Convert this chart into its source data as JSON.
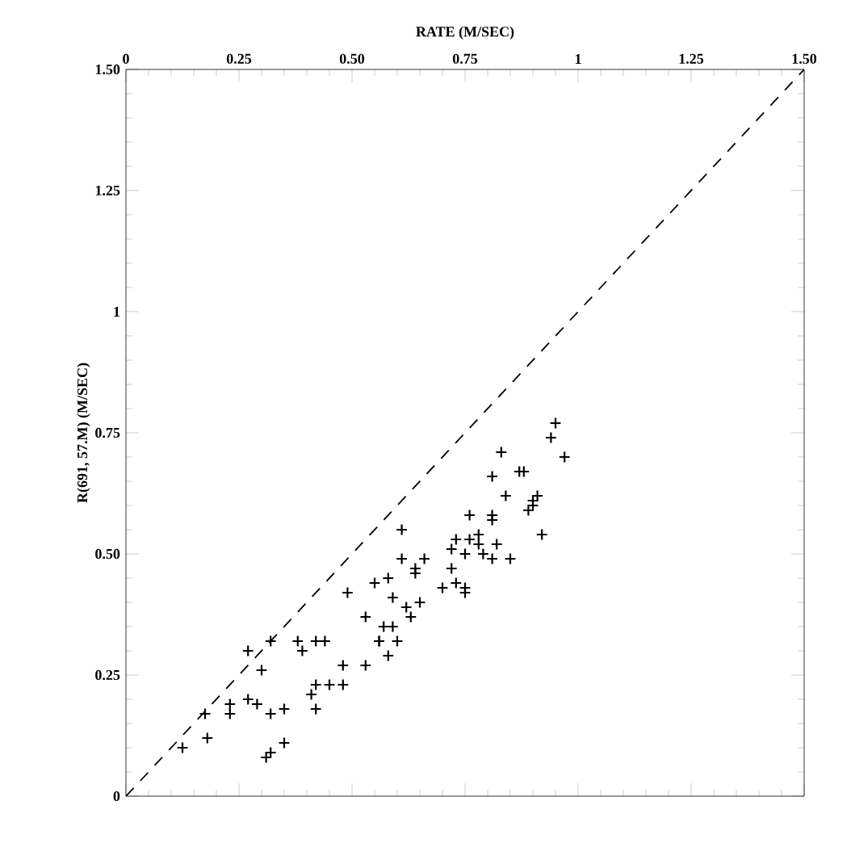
{
  "chart_data": {
    "type": "scatter",
    "xlabel": "RATE (M/SEC)",
    "ylabel": "R(691, 57.M) (M/SEC)",
    "marker": "cross",
    "xlim": [
      0,
      1.5
    ],
    "xticks": [
      0,
      0.25,
      {
        "value": 0.5,
        "label": "0.50"
      },
      0.75,
      1,
      1.25,
      {
        "value": 1.5,
        "label": "1.50"
      }
    ],
    "ylim": [
      0,
      1.5
    ],
    "yticks": [
      0,
      0.25,
      {
        "value": 0.5,
        "label": "0.50"
      },
      0.75,
      1,
      1.25,
      {
        "value": 1.5,
        "label": "1.50"
      }
    ],
    "series": [
      {
        "color": "#000000",
        "x": [
          0.125,
          0.175,
          0.18,
          0.23,
          0.23,
          0.27,
          0.27,
          0.29,
          0.3,
          0.32,
          0.32,
          0.31,
          0.32,
          0.35,
          0.35,
          0.38,
          0.39,
          0.42,
          0.42,
          0.41,
          0.42,
          0.45,
          0.48,
          0.48,
          0.53,
          0.53,
          0.56,
          0.57,
          0.61,
          0.61,
          0.66,
          0.64,
          0.64,
          0.49,
          0.55,
          0.58,
          0.59,
          0.59,
          0.56,
          0.6,
          0.58,
          0.62,
          0.63,
          0.65,
          0.7,
          0.73,
          0.75,
          0.75,
          0.72,
          0.72,
          0.73,
          0.75,
          0.76,
          0.78,
          0.82,
          0.81,
          0.85,
          0.81,
          0.44,
          0.95,
          0.94,
          0.97,
          0.88,
          0.91,
          0.9,
          0.89,
          0.83,
          0.87,
          0.81,
          0.84,
          0.81,
          0.9,
          0.92,
          0.76,
          0.78,
          0.79
        ],
        "values": [
          0.1,
          0.17,
          0.12,
          0.17,
          0.19,
          0.2,
          0.3,
          0.19,
          0.26,
          0.32,
          0.17,
          0.08,
          0.09,
          0.18,
          0.11,
          0.32,
          0.3,
          0.32,
          0.18,
          0.21,
          0.23,
          0.23,
          0.23,
          0.27,
          0.27,
          0.37,
          0.32,
          0.35,
          0.55,
          0.49,
          0.49,
          0.47,
          0.46,
          0.42,
          0.44,
          0.45,
          0.41,
          0.35,
          0.32,
          0.32,
          0.29,
          0.39,
          0.37,
          0.4,
          0.43,
          0.44,
          0.43,
          0.42,
          0.47,
          0.51,
          0.53,
          0.5,
          0.53,
          0.52,
          0.52,
          0.49,
          0.49,
          0.57,
          0.32,
          0.77,
          0.74,
          0.7,
          0.67,
          0.62,
          0.61,
          0.59,
          0.71,
          0.67,
          0.66,
          0.62,
          0.58,
          0.6,
          0.54,
          0.58,
          0.54,
          0.5
        ]
      },
      {
        "type": "line",
        "line_style": "dashed",
        "marker": "none",
        "color": "#000000",
        "x": [
          0,
          1.5
        ],
        "values": [
          0,
          1.5
        ]
      }
    ]
  }
}
